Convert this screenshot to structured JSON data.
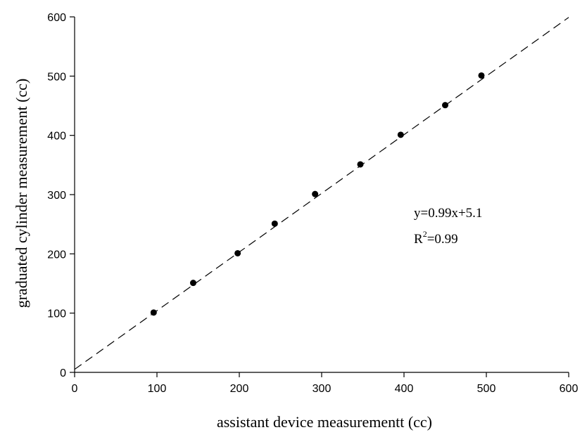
{
  "chart_data": {
    "type": "scatter",
    "xlabel": "assistant device measurementt (cc)",
    "ylabel": "graduated cylinder measurement (cc)",
    "xlim": [
      0,
      600
    ],
    "ylim": [
      0,
      600
    ],
    "x_ticks": [
      "0",
      "100",
      "200",
      "300",
      "400",
      "500",
      "600"
    ],
    "y_ticks": [
      "0",
      "100",
      "200",
      "300",
      "400",
      "500",
      "600"
    ],
    "grid": false,
    "series": [
      {
        "x": [
          96,
          144,
          198,
          243,
          292,
          347,
          396,
          450,
          494
        ],
        "y": [
          101,
          151,
          201,
          251,
          301,
          351,
          401,
          451,
          501
        ]
      }
    ],
    "fit_line": {
      "slope": 0.99,
      "intercept": 5.1,
      "x_range": [
        0,
        600
      ],
      "style": "dashed"
    },
    "annotations": {
      "equation": "y=0.99x+5.1",
      "r2_prefix": "R",
      "r2_sup": "2",
      "r2_suffix": "=0.99"
    }
  }
}
